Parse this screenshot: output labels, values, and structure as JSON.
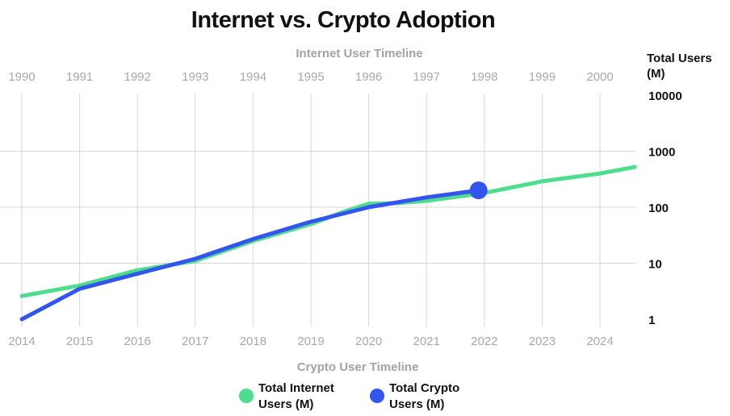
{
  "chart_data": {
    "type": "line",
    "title": "Internet vs. Crypto Adoption",
    "top_axis": {
      "label": "Internet User Timeline",
      "ticks": [
        "1990",
        "1991",
        "1992",
        "1993",
        "1994",
        "1995",
        "1996",
        "1997",
        "1998",
        "1999",
        "2000"
      ]
    },
    "bottom_axis": {
      "label": "Crypto User Timeline",
      "ticks": [
        "2014",
        "2015",
        "2016",
        "2017",
        "2018",
        "2019",
        "2020",
        "2021",
        "2022",
        "2023",
        "2024"
      ]
    },
    "y_axis": {
      "title_lines": [
        "Total Users",
        "(M)"
      ],
      "scale": "log",
      "ylim": [
        1,
        10000
      ],
      "ticks": [
        "1",
        "10",
        "100",
        "1000",
        "10000"
      ],
      "position": "right"
    },
    "grid": true,
    "legend_position": "bottom-center",
    "series": [
      {
        "name": "Total Internet Users (M)",
        "legend_lines": [
          "Total Internet",
          "Users (M)"
        ],
        "color": "#4ddd8c",
        "axis": "top",
        "x": [
          1990,
          1991,
          1992,
          1993,
          1994,
          1995,
          1995.6,
          1996,
          1996.5,
          1997,
          1998,
          1999,
          2000,
          2000.6
        ],
        "y": [
          2.6,
          4,
          7.5,
          11,
          25,
          50,
          85,
          115,
          118,
          130,
          180,
          290,
          400,
          520
        ]
      },
      {
        "name": "Total Crypto Users (M)",
        "legend_lines": [
          "Total Crypto",
          "Users (M)"
        ],
        "color": "#3255f0",
        "axis": "bottom",
        "x": [
          2014,
          2015,
          2016,
          2017,
          2018,
          2019,
          2020,
          2021,
          2021.9
        ],
        "y": [
          1,
          3.5,
          6.5,
          12,
          27,
          55,
          100,
          150,
          200
        ],
        "end_marker": true
      }
    ]
  }
}
